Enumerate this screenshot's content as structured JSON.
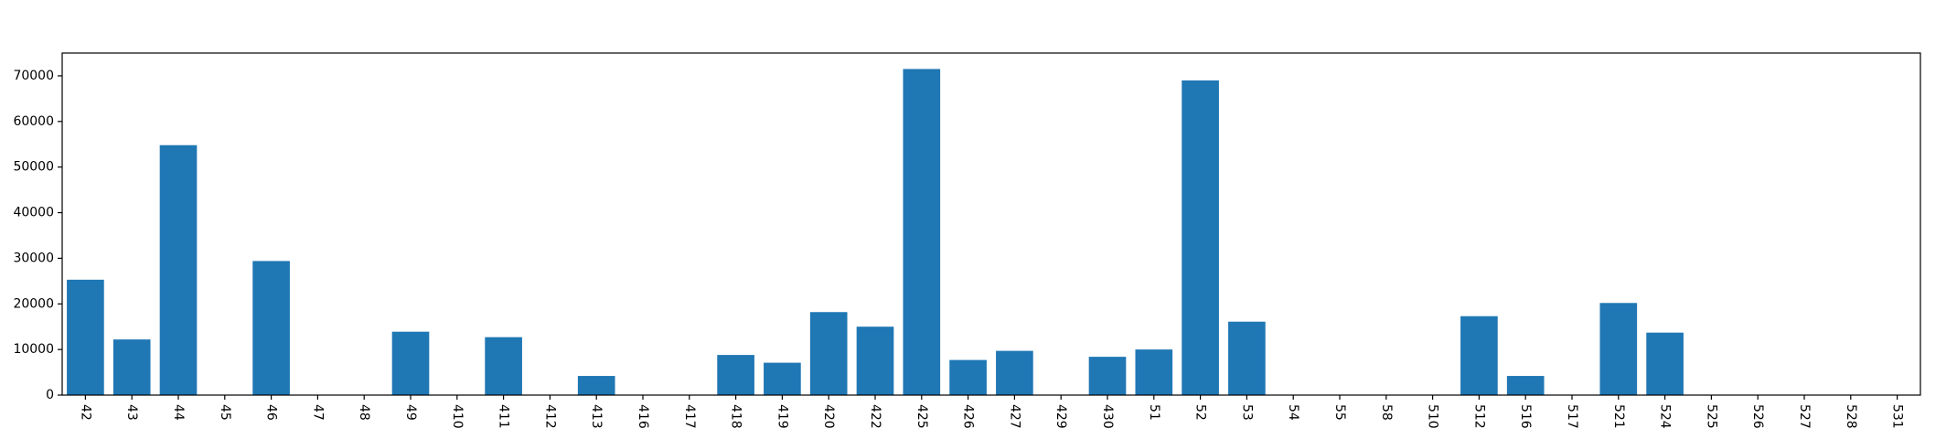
{
  "chart_data": {
    "type": "bar",
    "categories": [
      "42",
      "43",
      "44",
      "45",
      "46",
      "47",
      "48",
      "49",
      "410",
      "411",
      "412",
      "413",
      "416",
      "417",
      "418",
      "419",
      "420",
      "422",
      "425",
      "426",
      "427",
      "429",
      "430",
      "51",
      "52",
      "53",
      "54",
      "55",
      "58",
      "510",
      "512",
      "516",
      "517",
      "521",
      "524",
      "525",
      "526",
      "527",
      "528",
      "531"
    ],
    "values": [
      25300,
      12200,
      54800,
      0,
      29400,
      0,
      0,
      13900,
      0,
      12700,
      0,
      4200,
      0,
      0,
      8800,
      7100,
      18200,
      15000,
      71500,
      7700,
      9700,
      0,
      8400,
      10000,
      69000,
      16100,
      0,
      0,
      0,
      0,
      17300,
      4200,
      0,
      20200,
      13700,
      0,
      0,
      0,
      0,
      0
    ],
    "title": "",
    "xlabel": "",
    "ylabel": "",
    "ylim": [
      0,
      75000
    ],
    "yticks": [
      0,
      10000,
      20000,
      30000,
      40000,
      50000,
      60000,
      70000
    ],
    "ytick_labels": [
      "0",
      "10000",
      "20000",
      "30000",
      "40000",
      "50000",
      "60000",
      "70000"
    ],
    "xtick_rotation": "vertical",
    "grid": false,
    "bar_color": "#1f77b4"
  }
}
